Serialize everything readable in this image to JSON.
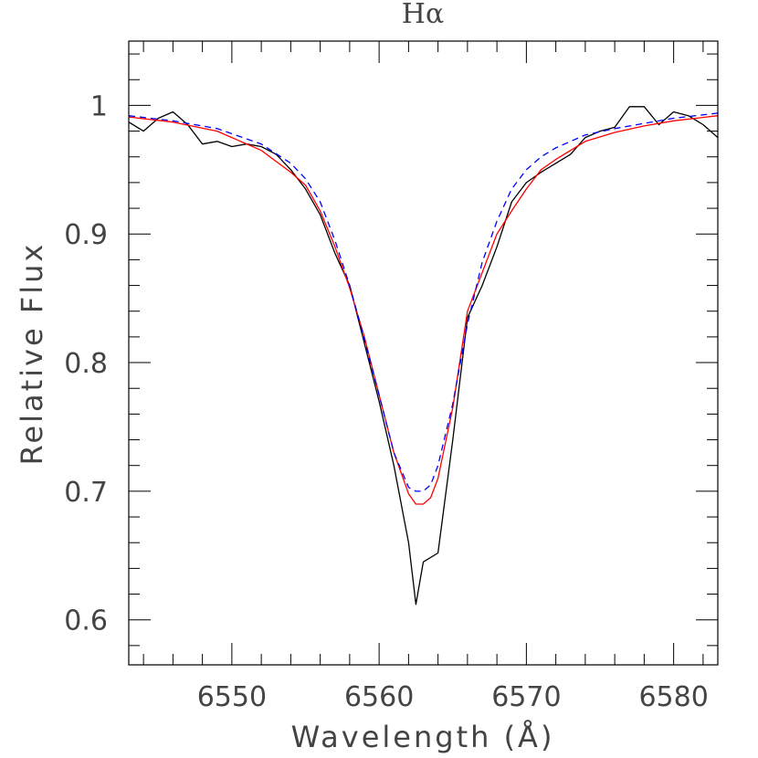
{
  "chart_data": {
    "type": "line",
    "title": "Hα",
    "xlabel": "Wavelength (Å)",
    "ylabel": "Relative Flux",
    "xlim": [
      6543,
      6583
    ],
    "ylim": [
      0.565,
      1.05
    ],
    "grid": false,
    "legend": "none",
    "x_ticks": [
      {
        "value": 6550,
        "label": "6550"
      },
      {
        "value": 6560,
        "label": "6560"
      },
      {
        "value": 6570,
        "label": "6570"
      },
      {
        "value": 6580,
        "label": "6580"
      }
    ],
    "y_ticks": [
      {
        "value": 0.6,
        "label": "0.6"
      },
      {
        "value": 0.7,
        "label": "0.7"
      },
      {
        "value": 0.8,
        "label": "0.8"
      },
      {
        "value": 0.9,
        "label": "0.9"
      },
      {
        "value": 1.0,
        "label": "1"
      }
    ],
    "series": [
      {
        "color": "#000000",
        "style": "solid",
        "x": [
          6543,
          6544,
          6545,
          6546,
          6547,
          6548,
          6549,
          6550,
          6551,
          6552,
          6553,
          6554,
          6555,
          6556,
          6557,
          6558,
          6559,
          6560,
          6561,
          6562,
          6562.5,
          6563,
          6564,
          6565,
          6566,
          6567,
          6568,
          6569,
          6570,
          6571,
          6572,
          6573,
          6574,
          6575,
          6576,
          6577,
          6578,
          6579,
          6580,
          6581,
          6582,
          6583
        ],
        "y": [
          0.987,
          0.98,
          0.99,
          0.995,
          0.985,
          0.97,
          0.972,
          0.968,
          0.97,
          0.968,
          0.962,
          0.95,
          0.935,
          0.915,
          0.885,
          0.86,
          0.815,
          0.77,
          0.72,
          0.66,
          0.612,
          0.645,
          0.652,
          0.74,
          0.835,
          0.86,
          0.89,
          0.925,
          0.94,
          0.948,
          0.955,
          0.962,
          0.975,
          0.98,
          0.983,
          0.999,
          0.999,
          0.985,
          0.995,
          0.992,
          0.985,
          0.975
        ]
      },
      {
        "color": "#ff0000",
        "style": "solid",
        "x": [
          6543,
          6546,
          6549,
          6552,
          6554,
          6555,
          6556,
          6557,
          6558,
          6559,
          6560,
          6561,
          6562,
          6562.5,
          6563,
          6563.5,
          6564,
          6565,
          6566,
          6567,
          6568,
          6569,
          6570,
          6571,
          6572,
          6574,
          6576,
          6578,
          6580,
          6583
        ],
        "y": [
          0.991,
          0.987,
          0.98,
          0.965,
          0.948,
          0.938,
          0.918,
          0.89,
          0.858,
          0.82,
          0.775,
          0.73,
          0.698,
          0.69,
          0.69,
          0.695,
          0.71,
          0.765,
          0.84,
          0.87,
          0.9,
          0.918,
          0.935,
          0.95,
          0.958,
          0.972,
          0.979,
          0.984,
          0.988,
          0.992
        ]
      },
      {
        "color": "#0000ff",
        "style": "dashed",
        "x": [
          6543,
          6546,
          6549,
          6552,
          6554,
          6555,
          6556,
          6557,
          6558,
          6559,
          6560,
          6561,
          6562,
          6562.5,
          6563,
          6563.5,
          6564,
          6565,
          6566,
          6567,
          6568,
          6569,
          6570,
          6571,
          6572,
          6574,
          6576,
          6578,
          6580,
          6583
        ],
        "y": [
          0.992,
          0.988,
          0.982,
          0.97,
          0.955,
          0.943,
          0.925,
          0.895,
          0.86,
          0.818,
          0.775,
          0.73,
          0.703,
          0.7,
          0.7,
          0.705,
          0.72,
          0.768,
          0.83,
          0.878,
          0.91,
          0.935,
          0.95,
          0.96,
          0.967,
          0.977,
          0.982,
          0.986,
          0.99,
          0.994
        ]
      }
    ]
  }
}
